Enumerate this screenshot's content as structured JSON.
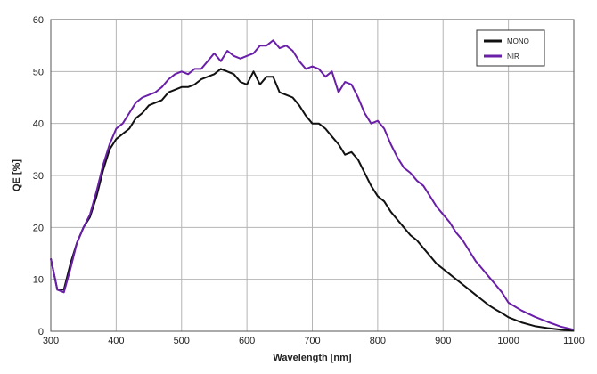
{
  "chart_data": {
    "type": "line",
    "title": "",
    "xlabel": "Wavelength [nm]",
    "ylabel": "QE [%]",
    "xlim": [
      300,
      1100
    ],
    "ylim": [
      0,
      60
    ],
    "xticks": [
      300,
      400,
      500,
      600,
      700,
      800,
      900,
      1000,
      1100
    ],
    "yticks": [
      0,
      10,
      20,
      30,
      40,
      50,
      60
    ],
    "grid": true,
    "legend_position": "top-right",
    "series": [
      {
        "name": "MONO",
        "color": "#111111",
        "x": [
          300,
          310,
          320,
          330,
          340,
          350,
          360,
          370,
          380,
          390,
          400,
          410,
          420,
          430,
          440,
          450,
          460,
          470,
          480,
          490,
          500,
          510,
          520,
          530,
          540,
          550,
          560,
          570,
          580,
          590,
          600,
          610,
          620,
          630,
          640,
          650,
          660,
          670,
          680,
          690,
          700,
          710,
          720,
          730,
          740,
          750,
          760,
          770,
          780,
          790,
          800,
          810,
          820,
          830,
          840,
          850,
          860,
          870,
          880,
          890,
          900,
          910,
          920,
          930,
          940,
          950,
          960,
          970,
          980,
          990,
          1000,
          1020,
          1040,
          1060,
          1080,
          1100
        ],
        "y": [
          14,
          8,
          8,
          13,
          17,
          20,
          22,
          26,
          31,
          35,
          37,
          38,
          39,
          41,
          42,
          43.5,
          44,
          44.5,
          46,
          46.5,
          47,
          47,
          47.5,
          48.5,
          49,
          49.5,
          50.5,
          50,
          49.5,
          48,
          47.5,
          50,
          47.5,
          49,
          49,
          46,
          45.5,
          45,
          43.5,
          41.5,
          40,
          40,
          39,
          37.5,
          36,
          34,
          34.5,
          33,
          30.5,
          28,
          26,
          25,
          23,
          21.5,
          20,
          18.5,
          17.5,
          16,
          14.5,
          13,
          12,
          11,
          10,
          9,
          8,
          7,
          6,
          5,
          4.2,
          3.5,
          2.7,
          1.7,
          1.0,
          0.6,
          0.3,
          0.1
        ]
      },
      {
        "name": "NIR",
        "color": "#6a1fa8",
        "x": [
          300,
          310,
          320,
          330,
          340,
          350,
          360,
          370,
          380,
          390,
          400,
          410,
          420,
          430,
          440,
          450,
          460,
          470,
          480,
          490,
          500,
          510,
          520,
          530,
          540,
          550,
          560,
          570,
          580,
          590,
          600,
          610,
          620,
          630,
          640,
          650,
          660,
          670,
          680,
          690,
          700,
          710,
          720,
          730,
          740,
          750,
          760,
          770,
          780,
          790,
          800,
          810,
          820,
          830,
          840,
          850,
          860,
          870,
          880,
          890,
          900,
          910,
          920,
          930,
          940,
          950,
          960,
          970,
          980,
          990,
          1000,
          1020,
          1040,
          1060,
          1080,
          1100
        ],
        "y": [
          14,
          8,
          7.5,
          12,
          17,
          20,
          22.5,
          27,
          32,
          36,
          39,
          40,
          42,
          44,
          45,
          45.5,
          46,
          47,
          48.5,
          49.5,
          50,
          49.5,
          50.5,
          50.5,
          52,
          53.5,
          52,
          54,
          53,
          52.5,
          53,
          53.5,
          55,
          55,
          56,
          54.5,
          55,
          54,
          52,
          50.5,
          51,
          50.5,
          49,
          50,
          46,
          48,
          47.5,
          45,
          42,
          40,
          40.5,
          39,
          36,
          33.5,
          31.5,
          30.5,
          29,
          28,
          26,
          24,
          22.5,
          21,
          19,
          17.5,
          15.5,
          13.5,
          12,
          10.5,
          9,
          7.5,
          5.5,
          4.0,
          2.8,
          1.8,
          0.9,
          0.3
        ]
      }
    ]
  }
}
